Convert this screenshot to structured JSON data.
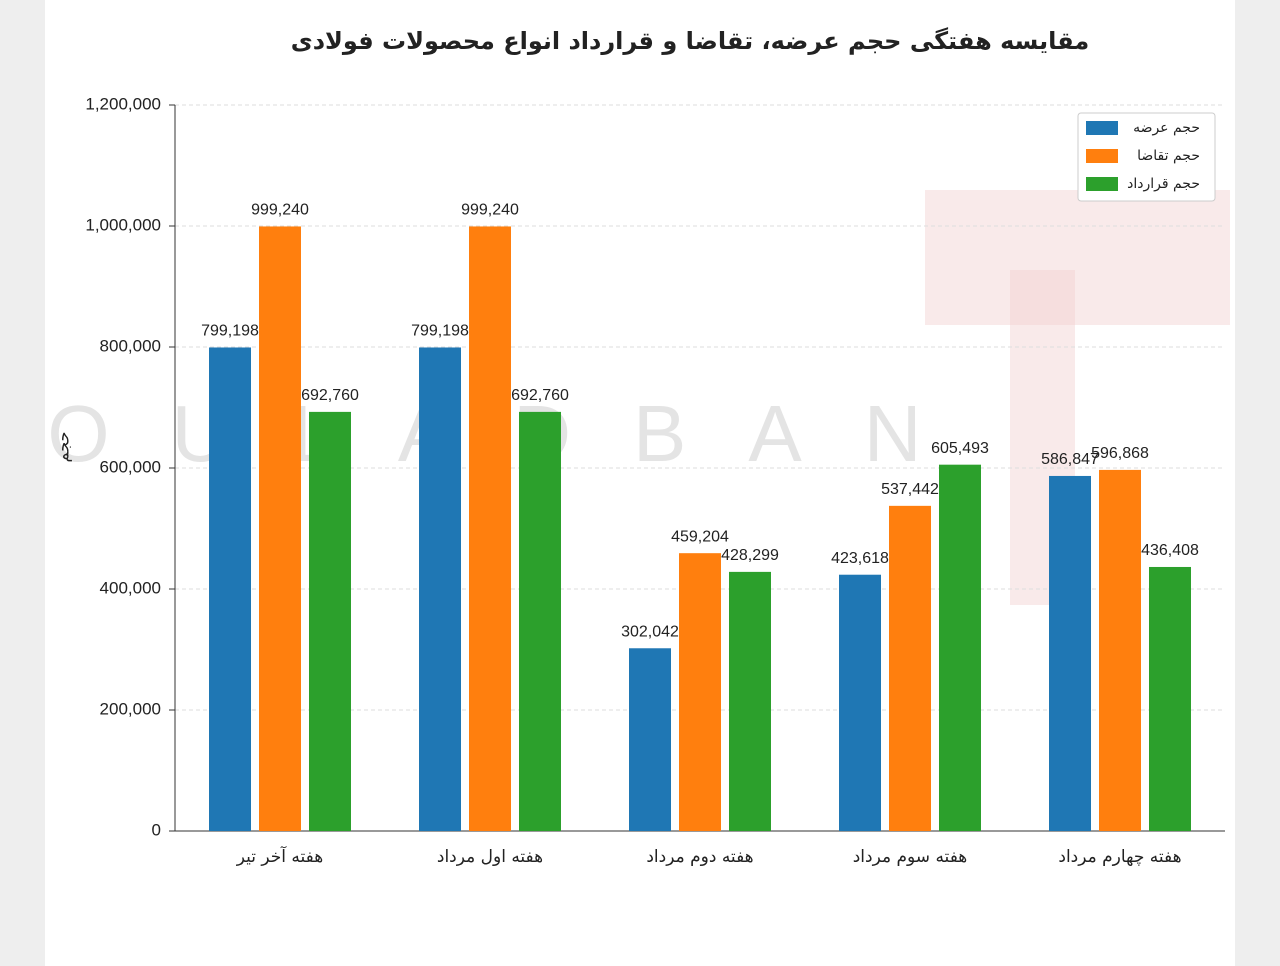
{
  "chart_data": {
    "type": "bar",
    "title": "مقایسه هفتگی حجم عرضه، تقاضا و قرارداد انواع محصولات فولادی",
    "y_label": "حجم",
    "watermark": "FOULADBAN",
    "categories": [
      "هفته آخر تیر",
      "هفته اول مرداد",
      "هفته دوم مرداد",
      "هفته سوم مرداد",
      "هفته چهارم مرداد"
    ],
    "series": [
      {
        "name": "حجم عرضه",
        "color": "#1f77b4",
        "values": [
          799198,
          799198,
          302042,
          423618,
          586847
        ],
        "value_labels": [
          "799,198",
          "799,198",
          "302,042",
          "423,618",
          "586,847"
        ]
      },
      {
        "name": "حجم تقاضا",
        "color": "#ff7f0e",
        "values": [
          999240,
          999240,
          459204,
          537442,
          596868
        ],
        "value_labels": [
          "999,240",
          "999,240",
          "459,204",
          "537,442",
          "596,868"
        ]
      },
      {
        "name": "حجم قرارداد",
        "color": "#2ca02c",
        "values": [
          692760,
          692760,
          428299,
          605493,
          436408
        ],
        "value_labels": [
          "692,760",
          "692,760",
          "428,299",
          "605,493",
          "436,408"
        ]
      }
    ],
    "ylim": [
      0,
      1200000
    ],
    "yticks": [
      0,
      {
        "value": 200000,
        "label": "200,000"
      },
      {
        "value": 400000,
        "label": "400,000"
      },
      {
        "value": 600000,
        "label": "600,000"
      },
      {
        "value": 800000,
        "label": "800,000"
      },
      {
        "value": 1000000,
        "label": "1,000,000"
      },
      {
        "value": 1200000,
        "label": "1,200,000"
      }
    ],
    "grid": true,
    "legend": "upper right"
  }
}
